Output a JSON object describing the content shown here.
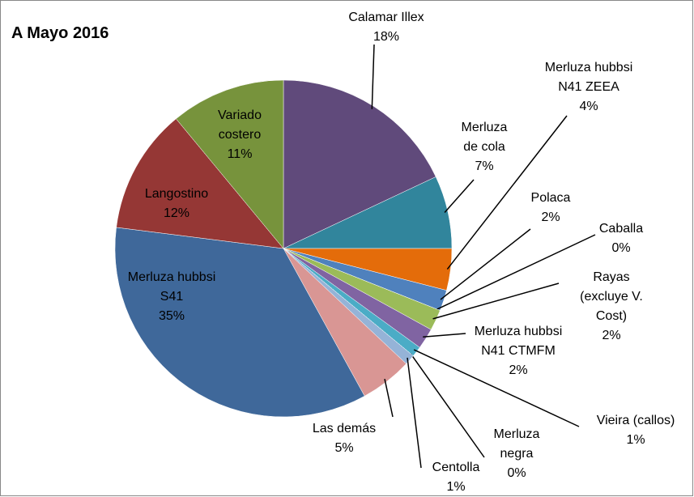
{
  "chart_data": {
    "type": "pie",
    "title": "A Mayo 2016",
    "categories": [
      "Calamar Illex",
      "Merluza de cola",
      "Merluza hubbsi N41 ZEEA",
      "Polaca",
      "Caballa",
      "Rayas (excluye V. Cost)",
      "Merluza hubbsi N41 CTMFM",
      "Vieira (callos)",
      "Merluza negra",
      "Centolla",
      "Las demás",
      "Merluza hubbsi S41",
      "Langostino",
      "Variado costero"
    ],
    "values": [
      18,
      7,
      4,
      2,
      0,
      2,
      2,
      1,
      0,
      1,
      5,
      35,
      12,
      11
    ],
    "value_labels": [
      "18%",
      "7%",
      "4%",
      "2%",
      "0%",
      "2%",
      "2%",
      "1%",
      "0%",
      "1%",
      "5%",
      "35%",
      "12%",
      "11%"
    ],
    "colors": [
      "#604a7b",
      "#31859c",
      "#e46c0a",
      "#4f81bd",
      "#c0504d",
      "#9bbb59",
      "#8064a2",
      "#4bacc6",
      "#f79646",
      "#95b3d7",
      "#d99694",
      "#3f689a",
      "#953735",
      "#77933c"
    ]
  }
}
